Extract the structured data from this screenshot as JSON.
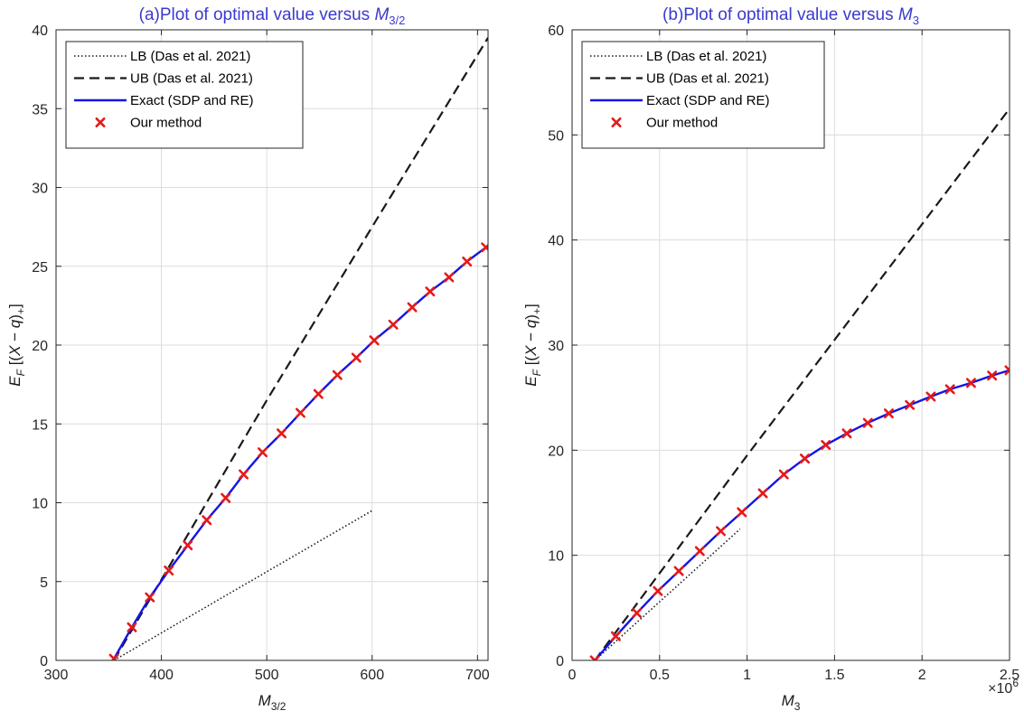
{
  "figure_colors": {
    "lb": "#1a1a1a",
    "ub": "#1a1a1a",
    "exact": "#1414e6",
    "marker": "#e61a1a",
    "title": "#3a3ad0",
    "grid": "#dcdcdc"
  },
  "chart_data": [
    {
      "type": "line",
      "title": "(a)Plot of optimal value versus M3/2",
      "title_prefix": "(a)Plot of optimal value versus ",
      "title_sym": "M",
      "title_sub": "3/2",
      "xlabel": "M3/2",
      "xlabel_sym": "M",
      "xlabel_sub": "3/2",
      "ylabel": "E_F [(X − q)+]",
      "xlim": [
        300,
        710
      ],
      "ylim": [
        0,
        40
      ],
      "x_ticks": [
        300,
        400,
        500,
        600,
        700
      ],
      "x_tick_labels": [
        "300",
        "400",
        "500",
        "600",
        "700"
      ],
      "y_ticks": [
        0,
        5,
        10,
        15,
        20,
        25,
        30,
        35,
        40
      ],
      "y_tick_labels": [
        "0",
        "5",
        "10",
        "15",
        "20",
        "25",
        "30",
        "35",
        "40"
      ],
      "x_exponent_label": "",
      "grid": true,
      "legend_position": "top-left",
      "series": [
        {
          "name": "LB (Das et al. 2021)",
          "style": "dotted",
          "x": [
            355,
            600
          ],
          "y": [
            0,
            9.5
          ]
        },
        {
          "name": "UB (Das et al. 2021)",
          "style": "dashed",
          "x": [
            355,
            500,
            600,
            710
          ],
          "y": [
            0,
            16.5,
            27.5,
            39.5
          ]
        },
        {
          "name": "Exact (SDP and RE)",
          "style": "solid",
          "x": [
            355,
            372,
            389,
            407,
            425,
            443,
            461,
            478,
            496,
            514,
            532,
            549,
            567,
            585,
            602,
            620,
            638,
            655,
            673,
            690,
            708
          ],
          "y": [
            0.1,
            2.1,
            4.0,
            5.7,
            7.3,
            8.9,
            10.3,
            11.8,
            13.2,
            14.4,
            15.7,
            16.9,
            18.1,
            19.2,
            20.3,
            21.3,
            22.4,
            23.4,
            24.3,
            25.3,
            26.2
          ]
        },
        {
          "name": "Our method",
          "style": "markers",
          "x": [
            355,
            372,
            389,
            407,
            425,
            443,
            461,
            478,
            496,
            514,
            532,
            549,
            567,
            585,
            602,
            620,
            638,
            655,
            673,
            690,
            708
          ],
          "y": [
            0.1,
            2.1,
            4.0,
            5.7,
            7.3,
            8.9,
            10.3,
            11.8,
            13.2,
            14.4,
            15.7,
            16.9,
            18.1,
            19.2,
            20.3,
            21.3,
            22.4,
            23.4,
            24.3,
            25.3,
            26.2
          ]
        }
      ]
    },
    {
      "type": "line",
      "title": "(b)Plot of optimal value versus M3",
      "title_prefix": "(b)Plot of optimal value versus ",
      "title_sym": "M",
      "title_sub": "3",
      "xlabel": "M3",
      "xlabel_sym": "M",
      "xlabel_sub": "3",
      "ylabel": "E_F [(X − q)+]",
      "xlim": [
        0,
        2.5
      ],
      "ylim": [
        0,
        60
      ],
      "x_ticks": [
        0,
        0.5,
        1,
        1.5,
        2,
        2.5
      ],
      "x_tick_labels": [
        "0",
        "0.5",
        "1",
        "1.5",
        "2",
        "2.5"
      ],
      "y_ticks": [
        0,
        10,
        20,
        30,
        40,
        50,
        60
      ],
      "y_tick_labels": [
        "0",
        "10",
        "20",
        "30",
        "40",
        "50",
        "60"
      ],
      "x_exponent_label": "×10",
      "x_exponent_power": "6",
      "grid": true,
      "legend_position": "top-left",
      "series": [
        {
          "name": "LB (Das et al. 2021)",
          "style": "dotted",
          "x": [
            0.13,
            0.96
          ],
          "y": [
            0,
            12.5
          ]
        },
        {
          "name": "UB (Das et al. 2021)",
          "style": "dashed",
          "x": [
            0.13,
            1.0,
            2.5
          ],
          "y": [
            0,
            19.5,
            52.5
          ]
        },
        {
          "name": "Exact (SDP and RE)",
          "style": "solid",
          "x": [
            0.13,
            0.25,
            0.37,
            0.49,
            0.61,
            0.73,
            0.85,
            0.97,
            1.09,
            1.21,
            1.33,
            1.45,
            1.57,
            1.69,
            1.81,
            1.93,
            2.05,
            2.16,
            2.28,
            2.4,
            2.5
          ],
          "y": [
            0,
            2.3,
            4.5,
            6.6,
            8.5,
            10.4,
            12.3,
            14.1,
            15.9,
            17.7,
            19.2,
            20.5,
            21.6,
            22.6,
            23.5,
            24.3,
            25.1,
            25.8,
            26.4,
            27.1,
            27.6
          ]
        },
        {
          "name": "Our method",
          "style": "markers",
          "x": [
            0.13,
            0.25,
            0.37,
            0.49,
            0.61,
            0.73,
            0.85,
            0.97,
            1.09,
            1.21,
            1.33,
            1.45,
            1.57,
            1.69,
            1.81,
            1.93,
            2.05,
            2.16,
            2.28,
            2.4,
            2.5
          ],
          "y": [
            0,
            2.3,
            4.5,
            6.6,
            8.5,
            10.4,
            12.3,
            14.1,
            15.9,
            17.7,
            19.2,
            20.5,
            21.6,
            22.6,
            23.5,
            24.3,
            25.1,
            25.8,
            26.4,
            27.1,
            27.6
          ]
        }
      ]
    }
  ]
}
